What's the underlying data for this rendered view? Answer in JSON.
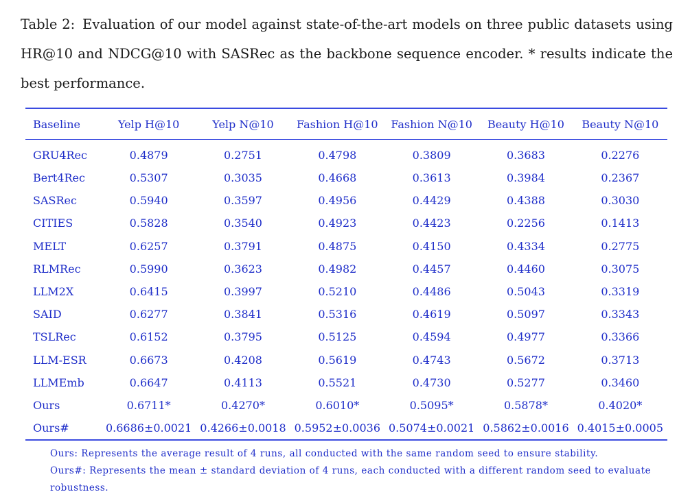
{
  "caption": {
    "label": "Table 2:",
    "text": "Evaluation of our model against state-of-the-art models on three public datasets using HR@10 and NDCG@10 with SASRec as the backbone sequence encoder. * results indicate the best performance."
  },
  "table": {
    "headers": [
      "Baseline",
      "Yelp H@10",
      "Yelp N@10",
      "Fashion H@10",
      "Fashion N@10",
      "Beauty H@10",
      "Beauty N@10"
    ],
    "rows": [
      [
        "GRU4Rec",
        "0.4879",
        "0.2751",
        "0.4798",
        "0.3809",
        "0.3683",
        "0.2276"
      ],
      [
        "Bert4Rec",
        "0.5307",
        "0.3035",
        "0.4668",
        "0.3613",
        "0.3984",
        "0.2367"
      ],
      [
        "SASRec",
        "0.5940",
        "0.3597",
        "0.4956",
        "0.4429",
        "0.4388",
        "0.3030"
      ],
      [
        "CITIES",
        "0.5828",
        "0.3540",
        "0.4923",
        "0.4423",
        "0.2256",
        "0.1413"
      ],
      [
        "MELT",
        "0.6257",
        "0.3791",
        "0.4875",
        "0.4150",
        "0.4334",
        "0.2775"
      ],
      [
        "RLMRec",
        "0.5990",
        "0.3623",
        "0.4982",
        "0.4457",
        "0.4460",
        "0.3075"
      ],
      [
        "LLM2X",
        "0.6415",
        "0.3997",
        "0.5210",
        "0.4486",
        "0.5043",
        "0.3319"
      ],
      [
        "SAID",
        "0.6277",
        "0.3841",
        "0.5316",
        "0.4619",
        "0.5097",
        "0.3343"
      ],
      [
        "TSLRec",
        "0.6152",
        "0.3795",
        "0.5125",
        "0.4594",
        "0.4977",
        "0.3366"
      ],
      [
        "LLM-ESR",
        "0.6673",
        "0.4208",
        "0.5619",
        "0.4743",
        "0.5672",
        "0.3713"
      ],
      [
        "LLMEmb",
        "0.6647",
        "0.4113",
        "0.5521",
        "0.4730",
        "0.5277",
        "0.3460"
      ],
      [
        "Ours",
        "0.6711*",
        "0.4270*",
        "0.6010*",
        "0.5095*",
        "0.5878*",
        "0.4020*"
      ],
      [
        "Ours#",
        "0.6686±0.0021",
        "0.4266±0.0018",
        "0.5952±0.0036",
        "0.5074±0.0021",
        "0.5862±0.0016",
        "0.4015±0.0005"
      ]
    ]
  },
  "notes": [
    "Ours: Represents the average result of 4 runs, all conducted with the same random seed to ensure stability.",
    "Ours#: Represents the mean ± standard deviation of 4 runs, each conducted with a different random seed to evaluate robustness."
  ],
  "colors": {
    "table_text": "#1f2ec9",
    "rule": "#3a4be0",
    "caption_text": "#1a1a1a"
  }
}
